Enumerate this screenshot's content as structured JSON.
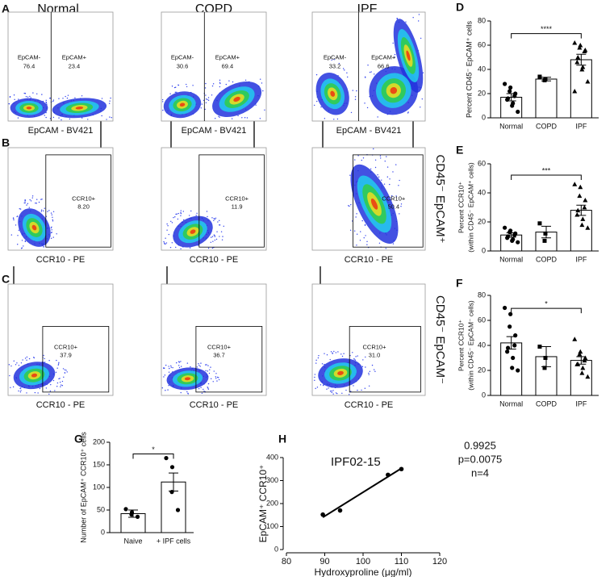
{
  "flow": {
    "columns": [
      "Normal",
      "COPD",
      "IPF"
    ],
    "rows": [
      {
        "panel": "A",
        "plots": [
          {
            "x_label": "EpCAM - BV421",
            "gates": [
              {
                "label": "EpCAM-",
                "value": "76.4"
              },
              {
                "label": "EpCAM+",
                "value": "23.4"
              }
            ]
          },
          {
            "x_label": "EpCAM - BV421",
            "gates": [
              {
                "label": "EpCAM-",
                "value": "30.6"
              },
              {
                "label": "EpCAM+",
                "value": "69.4"
              }
            ]
          },
          {
            "x_label": "EpCAM - BV421",
            "gates": [
              {
                "label": "EpCAM-",
                "value": "33.2"
              },
              {
                "label": "EpCAM+",
                "value": "66.6"
              }
            ]
          }
        ]
      },
      {
        "panel": "B",
        "side_label": "CD45⁻ EpCAM⁺",
        "plots": [
          {
            "x_label": "CCR10 - PE",
            "gates": [
              {
                "label": "CCR10+",
                "value": "8.20"
              }
            ]
          },
          {
            "x_label": "CCR10 - PE",
            "gates": [
              {
                "label": "CCR10+",
                "value": "11.9"
              }
            ]
          },
          {
            "x_label": "CCR10 - PE",
            "gates": [
              {
                "label": "CCR10+",
                "value": "50.4"
              }
            ]
          }
        ]
      },
      {
        "panel": "C",
        "side_label": "CD45⁻ EpCAM⁻",
        "plots": [
          {
            "x_label": "CCR10 - PE",
            "gates": [
              {
                "label": "CCR10+",
                "value": "37.9"
              }
            ]
          },
          {
            "x_label": "CCR10 - PE",
            "gates": [
              {
                "label": "CCR10+",
                "value": "36.7"
              }
            ]
          },
          {
            "x_label": "CCR10 - PE",
            "gates": [
              {
                "label": "CCR10+",
                "value": "31.0"
              }
            ]
          }
        ]
      }
    ]
  },
  "chart_data": [
    {
      "type": "bar",
      "panel": "D",
      "y_label": [
        "Percent CD45⁻ EpCAM⁺ cells"
      ],
      "categories": [
        "Normal",
        "COPD",
        "IPF"
      ],
      "values": [
        17,
        32,
        48
      ],
      "errors": [
        3,
        1.5,
        4.5
      ],
      "points": [
        [
          28,
          25,
          22,
          20,
          18,
          16,
          15,
          12,
          10,
          5
        ],
        [
          34,
          32,
          31
        ],
        [
          62,
          60,
          58,
          56,
          55,
          50,
          46,
          42,
          40,
          30,
          22
        ]
      ],
      "markers": [
        "circle",
        "square",
        "triangle"
      ],
      "color": "#ffffff",
      "ylim": [
        0,
        80
      ],
      "yticks": [
        0,
        20,
        40,
        60,
        80
      ],
      "significance": "****"
    },
    {
      "type": "bar",
      "panel": "E",
      "y_label": [
        "Percent CCR10⁺",
        "(within CD45⁻ EpCAM⁺ cells)"
      ],
      "categories": [
        "Normal",
        "COPD",
        "IPF"
      ],
      "values": [
        11,
        13,
        28
      ],
      "errors": [
        1.5,
        4,
        3.5
      ],
      "points": [
        [
          16,
          14,
          13,
          12,
          11,
          10,
          9,
          8,
          7,
          6
        ],
        [
          19,
          12,
          7
        ],
        [
          46,
          44,
          38,
          35,
          30,
          28,
          25,
          22,
          18,
          16
        ]
      ],
      "markers": [
        "circle",
        "square",
        "triangle"
      ],
      "color": "#ffffff",
      "ylim": [
        0,
        60
      ],
      "yticks": [
        0,
        20,
        40,
        60
      ],
      "significance": "***"
    },
    {
      "type": "bar",
      "panel": "F",
      "y_label": [
        "Percent CCR10⁺",
        "(within CD45⁻ EpCAM⁻ cells)"
      ],
      "categories": [
        "Normal",
        "COPD",
        "IPF"
      ],
      "values": [
        42,
        31,
        28
      ],
      "errors": [
        5,
        8,
        3
      ],
      "points": [
        [
          70,
          65,
          55,
          48,
          40,
          38,
          35,
          30,
          22,
          20
        ],
        [
          39,
          30,
          22
        ],
        [
          45,
          35,
          33,
          30,
          28,
          25,
          25,
          22,
          18,
          15
        ]
      ],
      "markers": [
        "circle",
        "square",
        "triangle"
      ],
      "color": "#ffffff",
      "ylim": [
        0,
        80
      ],
      "yticks": [
        0,
        20,
        40,
        60,
        80
      ],
      "significance": "*"
    },
    {
      "type": "bar",
      "panel": "G",
      "y_label": [
        "Number of EpCAM⁺ CCR10⁺ cells"
      ],
      "categories": [
        "Naive",
        "+ IPF cells"
      ],
      "values": [
        42,
        112
      ],
      "errors": [
        8,
        20
      ],
      "points": [
        [
          52,
          45,
          40,
          35
        ],
        [
          165,
          145,
          90,
          50
        ]
      ],
      "markers": [
        "circle",
        "circle"
      ],
      "color": "#ffffff",
      "ylim": [
        0,
        200
      ],
      "yticks": [
        0,
        50,
        100,
        150,
        200
      ],
      "significance": "*"
    },
    {
      "type": "scatter",
      "panel": "H",
      "title": "IPF02-15",
      "annotations": [
        "0.9925",
        "p=0.0075",
        "n=4"
      ],
      "x": [
        89.5,
        94,
        106.5,
        110
      ],
      "values": [
        152,
        170,
        325,
        350
      ],
      "color": "#000000",
      "x_label": "Hydroxyproline (μg/ml)",
      "y_label": [
        "EpCAM⁺ CCR10⁺"
      ],
      "xlim": [
        80,
        120
      ],
      "xticks": [
        80,
        90,
        100,
        110,
        120
      ],
      "ylim": [
        0,
        400
      ],
      "yticks": [
        0,
        100,
        200,
        300,
        400
      ]
    }
  ]
}
